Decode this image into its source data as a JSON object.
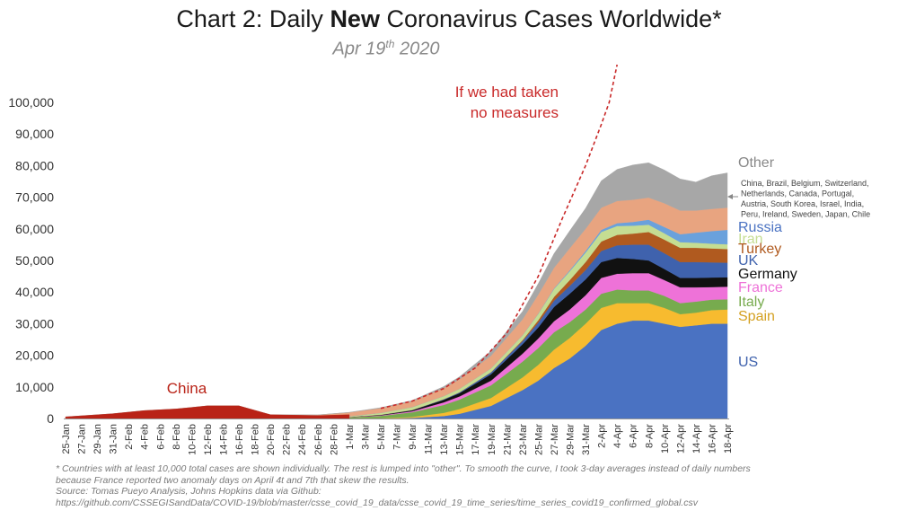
{
  "title": {
    "prefix": "Chart 2: Daily ",
    "emphasis": "New",
    "suffix": " Coronavirus Cases Worldwide*"
  },
  "subtitle": {
    "date": "Apr 19",
    "date_sup": "th",
    "year": " 2020"
  },
  "footnote": {
    "line1": "* Countries with at least 10,000 total cases are shown individually. The rest is lumped into \"other\". To smooth the curve, I took 3-day averages instead of daily numbers",
    "line2": "because France reported two anomaly days on April 4t and 7th that skew the results.",
    "line3": "Source: Tomas Pueyo Analysis, Johns Hopkins data via Github:",
    "line4": "https://github.com/CSSEGISandData/COVID-19/blob/master/csse_covid_19_data/csse_covid_19_time_series/time_series_covid19_confirmed_global.csv"
  },
  "chart_data": {
    "type": "area",
    "stacked": true,
    "ylim": [
      0,
      100000
    ],
    "y_ticks": [
      "0",
      "10,000",
      "20,000",
      "30,000",
      "40,000",
      "50,000",
      "60,000",
      "70,000",
      "80,000",
      "90,000",
      "100,000"
    ],
    "x_tick_labels": [
      "25-Jan",
      "27-Jan",
      "29-Jan",
      "31-Jan",
      "2-Feb",
      "4-Feb",
      "6-Feb",
      "8-Feb",
      "10-Feb",
      "12-Feb",
      "14-Feb",
      "16-Feb",
      "18-Feb",
      "20-Feb",
      "22-Feb",
      "24-Feb",
      "26-Feb",
      "28-Feb",
      "1-Mar",
      "3-Mar",
      "5-Mar",
      "7-Mar",
      "9-Mar",
      "11-Mar",
      "13-Mar",
      "15-Mar",
      "17-Mar",
      "19-Mar",
      "21-Mar",
      "23-Mar",
      "25-Mar",
      "27-Mar",
      "29-Mar",
      "31-Mar",
      "2-Apr",
      "4-Apr",
      "6-Apr",
      "8-Apr",
      "10-Apr",
      "12-Apr",
      "14-Apr",
      "16-Apr",
      "18-Apr"
    ],
    "x_points": [
      "25-Jan",
      "31-Jan",
      "4-Feb",
      "8-Feb",
      "10-Feb",
      "12-Feb",
      "15-Feb",
      "16-Feb",
      "17-Feb",
      "20-Feb",
      "26-Feb",
      "1-Mar",
      "5-Mar",
      "9-Mar",
      "13-Mar",
      "15-Mar",
      "19-Mar",
      "23-Mar",
      "25-Mar",
      "27-Mar",
      "29-Mar",
      "31-Mar",
      "2-Apr",
      "4-Apr",
      "6-Apr",
      "8-Apr",
      "10-Apr",
      "12-Apr",
      "14-Apr",
      "16-Apr",
      "18-Apr"
    ],
    "series": [
      {
        "name": "US",
        "color": "#4a72c2",
        "values": [
          0,
          0,
          0,
          0,
          0,
          0,
          0,
          0,
          0,
          0,
          0,
          0,
          0,
          200,
          800,
          1500,
          4000,
          9000,
          12000,
          16000,
          19000,
          23000,
          28000,
          30000,
          31000,
          31000,
          30000,
          29000,
          29500,
          30000,
          30000
        ]
      },
      {
        "name": "Spain",
        "color": "#f7bb2f",
        "values": [
          0,
          0,
          0,
          0,
          0,
          0,
          0,
          0,
          0,
          0,
          0,
          0,
          50,
          300,
          1000,
          1500,
          2500,
          4000,
          5000,
          5800,
          6500,
          7000,
          7000,
          6500,
          5500,
          5500,
          5000,
          4000,
          4000,
          4300,
          4500
        ]
      },
      {
        "name": "Italy",
        "color": "#77ab4e",
        "values": [
          0,
          0,
          0,
          0,
          0,
          0,
          0,
          0,
          0,
          0,
          200,
          400,
          800,
          1500,
          2500,
          3000,
          4000,
          5000,
          5300,
          5500,
          5000,
          4500,
          4500,
          4300,
          4000,
          4000,
          3800,
          3500,
          3500,
          3300,
          3200
        ]
      },
      {
        "name": "France",
        "color": "#ee72d8",
        "values": [
          0,
          0,
          0,
          0,
          0,
          0,
          0,
          0,
          0,
          0,
          0,
          50,
          150,
          300,
          800,
          1000,
          1500,
          2500,
          3000,
          3500,
          4000,
          4500,
          5000,
          5000,
          5500,
          5500,
          5000,
          5000,
          4500,
          4000,
          4000
        ]
      },
      {
        "name": "Germany",
        "color": "#111111",
        "values": [
          0,
          0,
          0,
          0,
          0,
          0,
          0,
          0,
          0,
          0,
          0,
          50,
          150,
          300,
          800,
          1000,
          2000,
          3000,
          3500,
          4500,
          5000,
          5000,
          5000,
          5000,
          4500,
          4000,
          3500,
          3000,
          3000,
          3000,
          3000
        ]
      },
      {
        "name": "UK",
        "color": "#3f62ad",
        "values": [
          0,
          0,
          0,
          0,
          0,
          0,
          0,
          0,
          0,
          0,
          0,
          0,
          30,
          100,
          200,
          300,
          600,
          1000,
          1500,
          2000,
          2500,
          3000,
          3500,
          4000,
          4500,
          5000,
          5000,
          5000,
          5000,
          4800,
          4600
        ]
      },
      {
        "name": "Turkey",
        "color": "#b05a1f",
        "values": [
          0,
          0,
          0,
          0,
          0,
          0,
          0,
          0,
          0,
          0,
          0,
          0,
          0,
          0,
          0,
          0,
          50,
          300,
          800,
          1200,
          1800,
          2500,
          3000,
          3300,
          3500,
          4000,
          4300,
          4500,
          4500,
          4400,
          4300
        ]
      },
      {
        "name": "Iran",
        "color": "#c5dd92",
        "values": [
          0,
          0,
          0,
          0,
          0,
          0,
          0,
          0,
          0,
          0,
          50,
          200,
          600,
          900,
          1000,
          1100,
          1200,
          1500,
          2000,
          2500,
          2800,
          3000,
          3000,
          2800,
          2500,
          2300,
          2000,
          1800,
          1600,
          1500,
          1500
        ]
      },
      {
        "name": "Russia",
        "color": "#6aa1dc",
        "values": [
          0,
          0,
          0,
          0,
          0,
          0,
          0,
          0,
          0,
          0,
          0,
          0,
          0,
          0,
          0,
          0,
          20,
          50,
          100,
          200,
          300,
          500,
          700,
          900,
          1200,
          1600,
          2000,
          2500,
          3200,
          4000,
          4600
        ]
      },
      {
        "name": "China, Brazil, Belgium, Switzerland, Netherlands, Canada, Portugal, Austria, South Korea, Israel, India, Peru, Ireland, Sweden, Japan, Chile",
        "color": "#e8a480",
        "values": [
          500,
          1500,
          2500,
          3000,
          3500,
          4000,
          4000,
          4000,
          3300,
          1200,
          900,
          1200,
          1500,
          1800,
          2500,
          3000,
          4000,
          5000,
          6000,
          6500,
          7000,
          7000,
          7000,
          7000,
          7000,
          7000,
          7500,
          7500,
          7000,
          7000,
          7000
        ]
      },
      {
        "name": "Other",
        "color": "#a7a7a7",
        "values": [
          0,
          0,
          0,
          0,
          0,
          0,
          0,
          0,
          0,
          0,
          0,
          50,
          150,
          300,
          500,
          800,
          1500,
          2500,
          3500,
          4500,
          5500,
          6500,
          8500,
          10000,
          11000,
          11000,
          10500,
          10000,
          9000,
          10500,
          11000
        ]
      }
    ],
    "china_label": "China",
    "china_color": "#b92317",
    "series_labels": [
      {
        "text": "Other",
        "color": "#888888"
      },
      {
        "text": "Russia",
        "color": "#4a72c2"
      },
      {
        "text": "Iran",
        "color": "#c5dd92"
      },
      {
        "text": "Turkey",
        "color": "#b05a1f"
      },
      {
        "text": "UK",
        "color": "#3f62ad"
      },
      {
        "text": "Germany",
        "color": "#111111"
      },
      {
        "text": "France",
        "color": "#ee72d8"
      },
      {
        "text": "Italy",
        "color": "#77ab4e"
      },
      {
        "text": "Spain",
        "color": "#d4a020"
      },
      {
        "text": "US",
        "color": "#3f62ad"
      }
    ],
    "others_note": [
      "China, Brazil, Belgium, Switzerland,",
      "Netherlands, Canada, Portugal,",
      "Austria, South Korea, Israel, India,",
      "Peru, Ireland, Sweden, Japan, Chile"
    ],
    "projection": {
      "label_line1": "If we had taken",
      "label_line2": "no measures",
      "color": "#c92a2a",
      "x": [
        "5-Mar",
        "9-Mar",
        "13-Mar",
        "17-Mar",
        "21-Mar",
        "25-Mar",
        "28-Mar",
        "31-Mar",
        "2-Apr",
        "3-Apr",
        "4-Apr"
      ],
      "y": [
        3200,
        5500,
        9500,
        16000,
        27000,
        45000,
        63000,
        80000,
        93000,
        100000,
        112000
      ]
    }
  }
}
